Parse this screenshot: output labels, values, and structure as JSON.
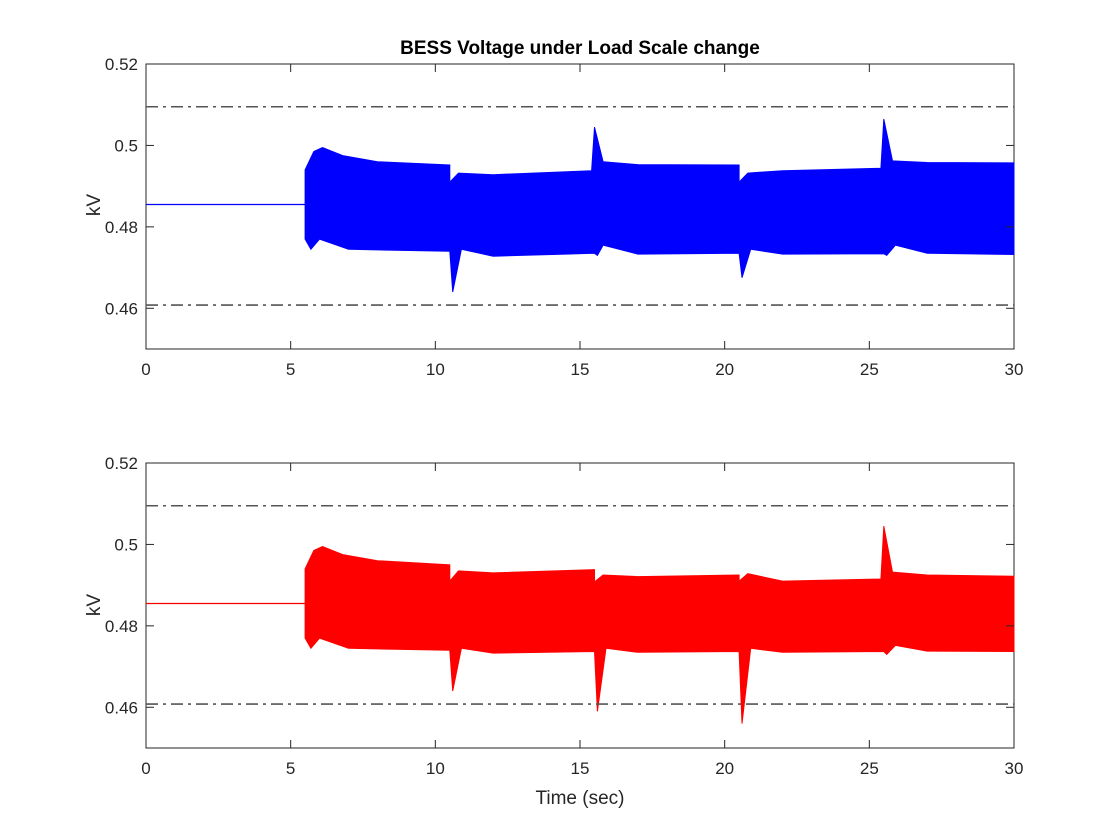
{
  "chart_data": [
    {
      "type": "line",
      "title": "BESS Voltage under Load Scale change",
      "xlabel": "",
      "ylabel": "kV",
      "xlim": [
        0,
        30
      ],
      "ylim": [
        0.45,
        0.52
      ],
      "xticks": [
        0,
        5,
        10,
        15,
        20,
        25,
        30
      ],
      "xtick_labels": [
        "0",
        "5",
        "10",
        "15",
        "20",
        "25",
        "30"
      ],
      "yticks": [
        0.46,
        0.48,
        0.5,
        0.52
      ],
      "ytick_labels": [
        "0.46",
        "0.48",
        "0.5",
        "0.52"
      ],
      "grid": false,
      "color": "#0000ff",
      "reference_lines": [
        {
          "y": 0.5095,
          "style": "dash-dot",
          "color": "#555555"
        },
        {
          "y": 0.4608,
          "style": "dash-dot",
          "color": "#555555"
        }
      ],
      "steady_value": 0.4855,
      "upper_envelope": [
        [
          0,
          0.4855
        ],
        [
          5.5,
          0.4855
        ],
        [
          5.5,
          0.494
        ],
        [
          5.8,
          0.4985
        ],
        [
          6.1,
          0.4995
        ],
        [
          6.8,
          0.4975
        ],
        [
          8,
          0.496
        ],
        [
          10.5,
          0.4952
        ],
        [
          10.5,
          0.491
        ],
        [
          10.8,
          0.4932
        ],
        [
          12,
          0.4928
        ],
        [
          15.4,
          0.4938
        ],
        [
          15.5,
          0.5045
        ],
        [
          15.8,
          0.496
        ],
        [
          17,
          0.4953
        ],
        [
          20.5,
          0.4952
        ],
        [
          20.5,
          0.491
        ],
        [
          20.8,
          0.4932
        ],
        [
          22,
          0.4938
        ],
        [
          25.4,
          0.4944
        ],
        [
          25.5,
          0.5065
        ],
        [
          25.8,
          0.4962
        ],
        [
          27,
          0.4958
        ],
        [
          30,
          0.4957
        ]
      ],
      "lower_envelope": [
        [
          0,
          0.4855
        ],
        [
          5.5,
          0.4855
        ],
        [
          5.5,
          0.477
        ],
        [
          5.7,
          0.4745
        ],
        [
          6.0,
          0.477
        ],
        [
          7,
          0.4745
        ],
        [
          10.5,
          0.474
        ],
        [
          10.6,
          0.464
        ],
        [
          10.9,
          0.4745
        ],
        [
          12,
          0.4728
        ],
        [
          15.5,
          0.4735
        ],
        [
          15.6,
          0.473
        ],
        [
          15.8,
          0.4755
        ],
        [
          17,
          0.4733
        ],
        [
          20.5,
          0.4735
        ],
        [
          20.6,
          0.4675
        ],
        [
          20.9,
          0.4745
        ],
        [
          22,
          0.4733
        ],
        [
          25.5,
          0.4734
        ],
        [
          25.6,
          0.473
        ],
        [
          25.9,
          0.4755
        ],
        [
          27,
          0.4735
        ],
        [
          30,
          0.4732
        ]
      ]
    },
    {
      "type": "line",
      "title": "",
      "xlabel": "Time (sec)",
      "ylabel": "kV",
      "xlim": [
        0,
        30
      ],
      "ylim": [
        0.45,
        0.52
      ],
      "xticks": [
        0,
        5,
        10,
        15,
        20,
        25,
        30
      ],
      "xtick_labels": [
        "0",
        "5",
        "10",
        "15",
        "20",
        "25",
        "30"
      ],
      "yticks": [
        0.46,
        0.48,
        0.5,
        0.52
      ],
      "ytick_labels": [
        "0.46",
        "0.48",
        "0.5",
        "0.52"
      ],
      "grid": false,
      "color": "#ff0000",
      "reference_lines": [
        {
          "y": 0.5095,
          "style": "dash-dot",
          "color": "#555555"
        },
        {
          "y": 0.4608,
          "style": "dash-dot",
          "color": "#555555"
        }
      ],
      "steady_value": 0.4855,
      "upper_envelope": [
        [
          0,
          0.4855
        ],
        [
          5.5,
          0.4855
        ],
        [
          5.5,
          0.494
        ],
        [
          5.8,
          0.4985
        ],
        [
          6.1,
          0.4995
        ],
        [
          6.8,
          0.4975
        ],
        [
          8,
          0.496
        ],
        [
          10.5,
          0.495
        ],
        [
          10.5,
          0.491
        ],
        [
          10.8,
          0.4935
        ],
        [
          12,
          0.493
        ],
        [
          15.5,
          0.4938
        ],
        [
          15.5,
          0.4908
        ],
        [
          15.8,
          0.4925
        ],
        [
          17,
          0.4921
        ],
        [
          20.5,
          0.4925
        ],
        [
          20.5,
          0.491
        ],
        [
          20.8,
          0.4928
        ],
        [
          22,
          0.491
        ],
        [
          25.4,
          0.4915
        ],
        [
          25.5,
          0.5045
        ],
        [
          25.8,
          0.4932
        ],
        [
          27,
          0.4925
        ],
        [
          30,
          0.4922
        ]
      ],
      "lower_envelope": [
        [
          0,
          0.4855
        ],
        [
          5.5,
          0.4855
        ],
        [
          5.5,
          0.477
        ],
        [
          5.7,
          0.4745
        ],
        [
          6.0,
          0.477
        ],
        [
          7,
          0.4745
        ],
        [
          10.5,
          0.474
        ],
        [
          10.6,
          0.464
        ],
        [
          10.9,
          0.4745
        ],
        [
          12,
          0.4733
        ],
        [
          15.5,
          0.4737
        ],
        [
          15.6,
          0.459
        ],
        [
          15.9,
          0.4745
        ],
        [
          17,
          0.4735
        ],
        [
          20.5,
          0.4737
        ],
        [
          20.6,
          0.456
        ],
        [
          20.9,
          0.4745
        ],
        [
          22,
          0.4735
        ],
        [
          25.5,
          0.4737
        ],
        [
          25.6,
          0.473
        ],
        [
          25.9,
          0.4752
        ],
        [
          27,
          0.4738
        ],
        [
          30,
          0.4737
        ]
      ]
    }
  ]
}
